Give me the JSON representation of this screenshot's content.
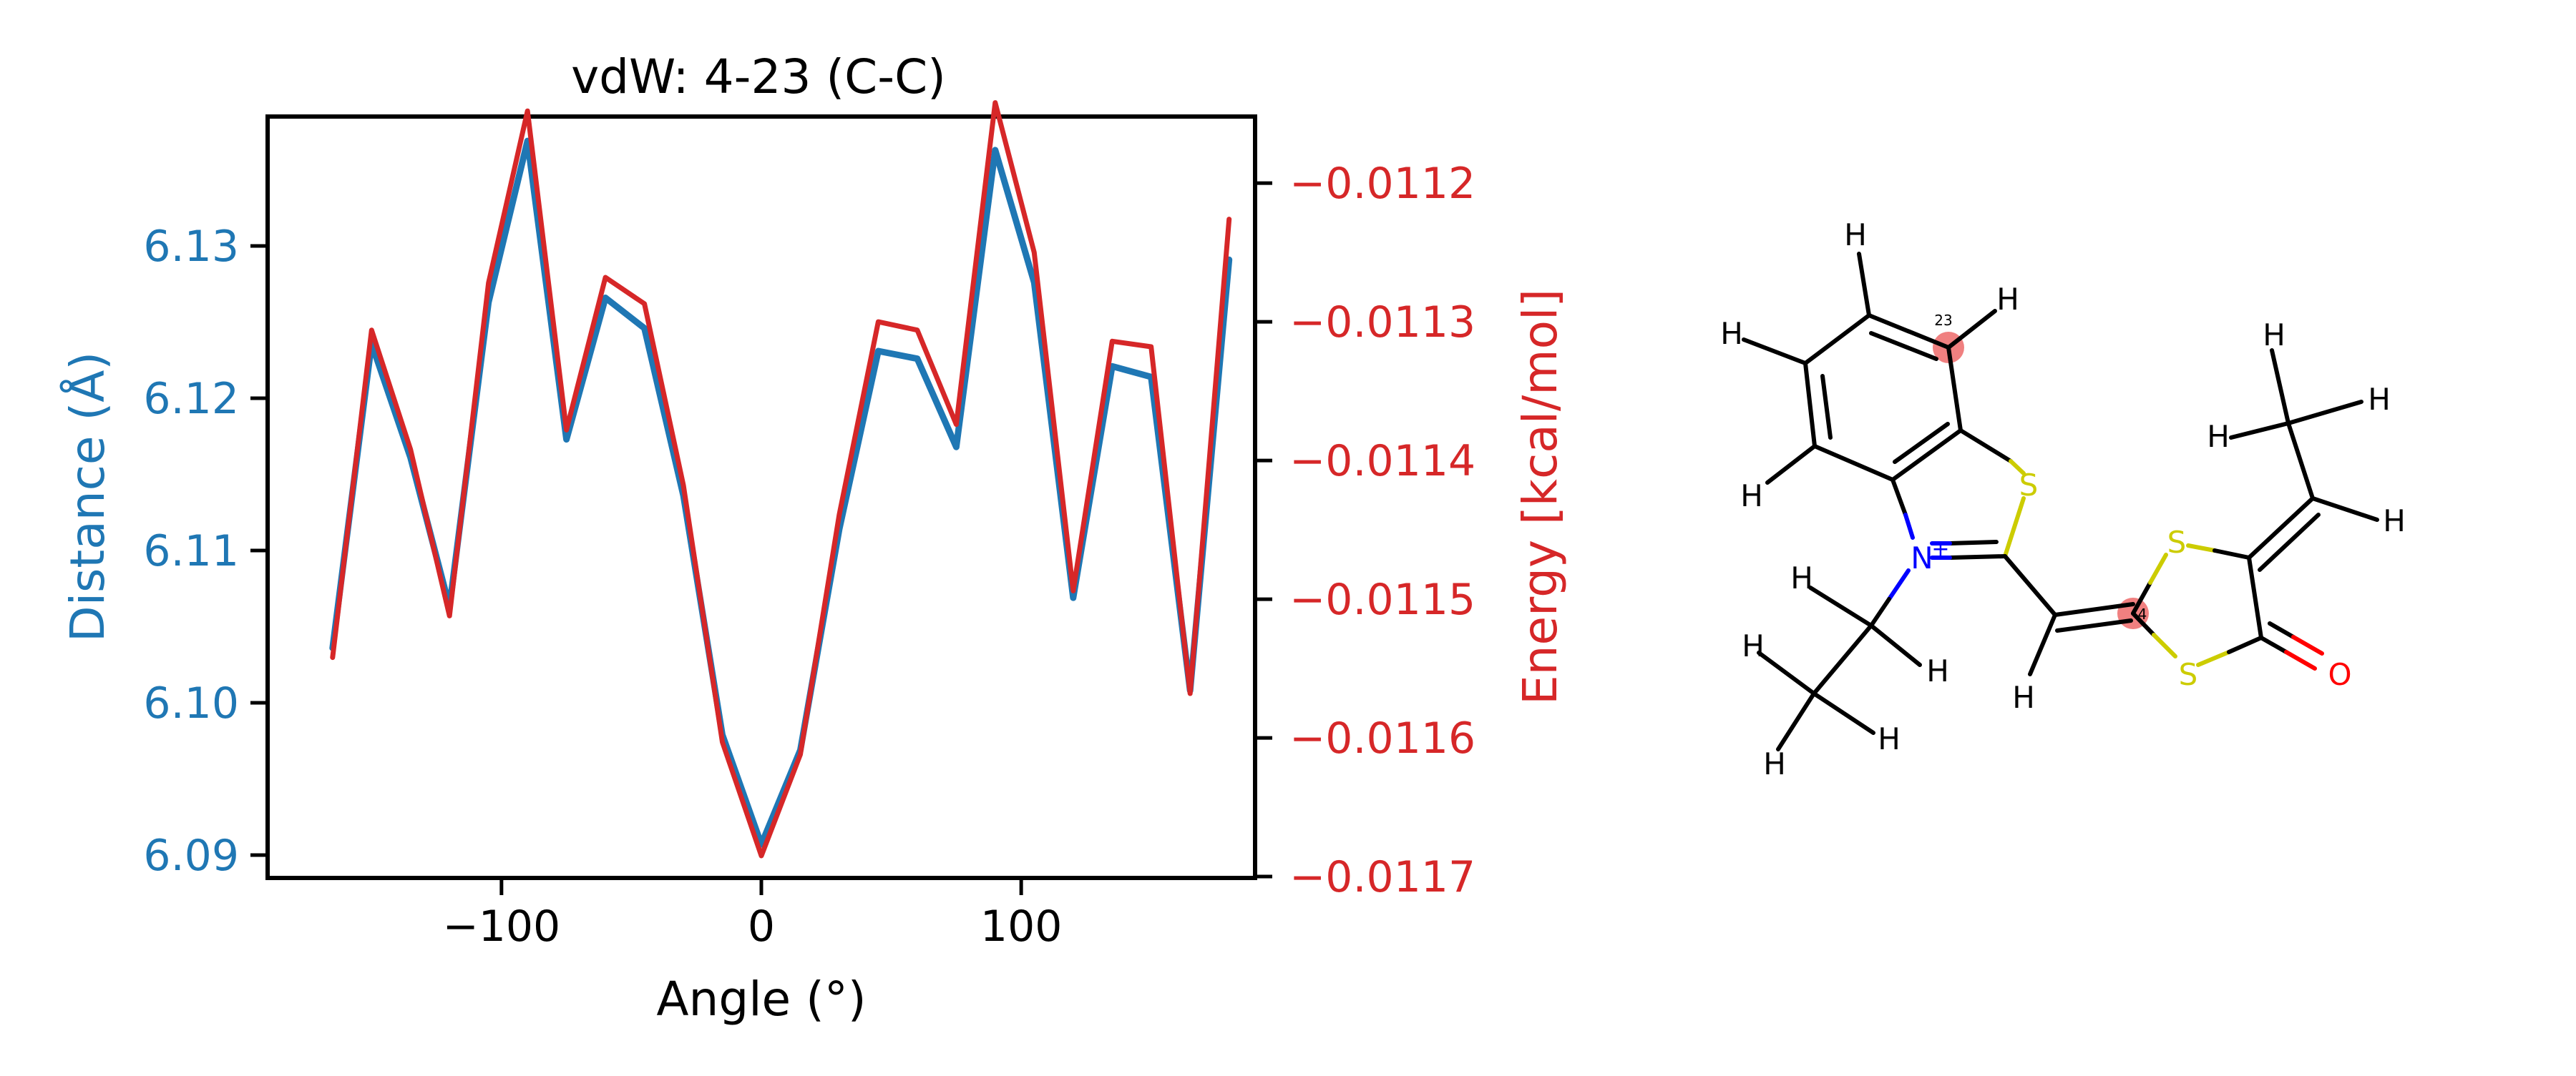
{
  "chart_data": {
    "type": "line",
    "title": "vdW: 4-23 (C-C)",
    "xlabel": "Angle (°)",
    "ylabel_left": "Distance (Å)",
    "ylabel_right": "Energy [kcal/mol]",
    "xlim": [
      -190,
      190
    ],
    "ylim_left": [
      6.0885,
      6.1385
    ],
    "ylim_right": [
      -0.011701,
      -0.011152
    ],
    "x_ticks": [
      -100,
      0,
      100
    ],
    "x_tick_labels": [
      "−100",
      "0",
      "100"
    ],
    "left_ticks": [
      6.09,
      6.1,
      6.11,
      6.12,
      6.13
    ],
    "left_tick_labels": [
      "6.09",
      "6.10",
      "6.11",
      "6.12",
      "6.13"
    ],
    "right_ticks": [
      -0.0117,
      -0.0116,
      -0.0115,
      -0.0114,
      -0.0113,
      -0.0112
    ],
    "right_tick_labels": [
      "−0.0117",
      "−0.0116",
      "−0.0115",
      "−0.0114",
      "−0.0113",
      "−0.0112"
    ],
    "grid": false,
    "x": [
      -165,
      -150,
      -135,
      -120,
      -105,
      -90,
      -75,
      -60,
      -45,
      -30,
      -15,
      0,
      15,
      30,
      45,
      60,
      75,
      90,
      105,
      120,
      135,
      150,
      165,
      180
    ],
    "series": [
      {
        "axis": "left",
        "color": "#1f77b4",
        "values": [
          6.1036,
          6.1236,
          6.1161,
          6.1063,
          6.1263,
          6.1369,
          6.1173,
          6.1266,
          6.1246,
          6.1136,
          6.0979,
          6.0907,
          6.0969,
          6.1114,
          6.1231,
          6.1226,
          6.1168,
          6.1363,
          6.1276,
          6.1069,
          6.1221,
          6.1214,
          6.1008,
          6.1291
        ]
      },
      {
        "axis": "right",
        "color": "#d62728",
        "values": [
          -0.011542,
          -0.011306,
          -0.011392,
          -0.011512,
          -0.011272,
          -0.011148,
          -0.011378,
          -0.011268,
          -0.011287,
          -0.011418,
          -0.011603,
          -0.011685,
          -0.011612,
          -0.011439,
          -0.0113,
          -0.011306,
          -0.011374,
          -0.011142,
          -0.01125,
          -0.011494,
          -0.011314,
          -0.011318,
          -0.011568,
          -0.011226
        ]
      }
    ]
  },
  "molecule": {
    "atom_labels": {
      "h1": "H",
      "h2": "H",
      "h3": "H",
      "h4": "H",
      "s1": "S",
      "n": "N",
      "plus": "+",
      "s2": "S",
      "s3": "S",
      "o": "O",
      "h_vinyl": "H",
      "h_et1": "H",
      "h_et2": "H",
      "h_et3": "H",
      "h_et4": "H",
      "h_et5": "H",
      "h_prop1": "H",
      "h_prop2": "H",
      "h_prop3": "H",
      "h_prop4": "H"
    },
    "highlight_labels": {
      "atom23": "23",
      "atom4": "4"
    },
    "colors": {
      "carbon": "#000000",
      "sulfur": "#cccc00",
      "nitrogen": "#0000ff",
      "oxygen": "#ff0000",
      "highlight": "#f08080"
    }
  }
}
